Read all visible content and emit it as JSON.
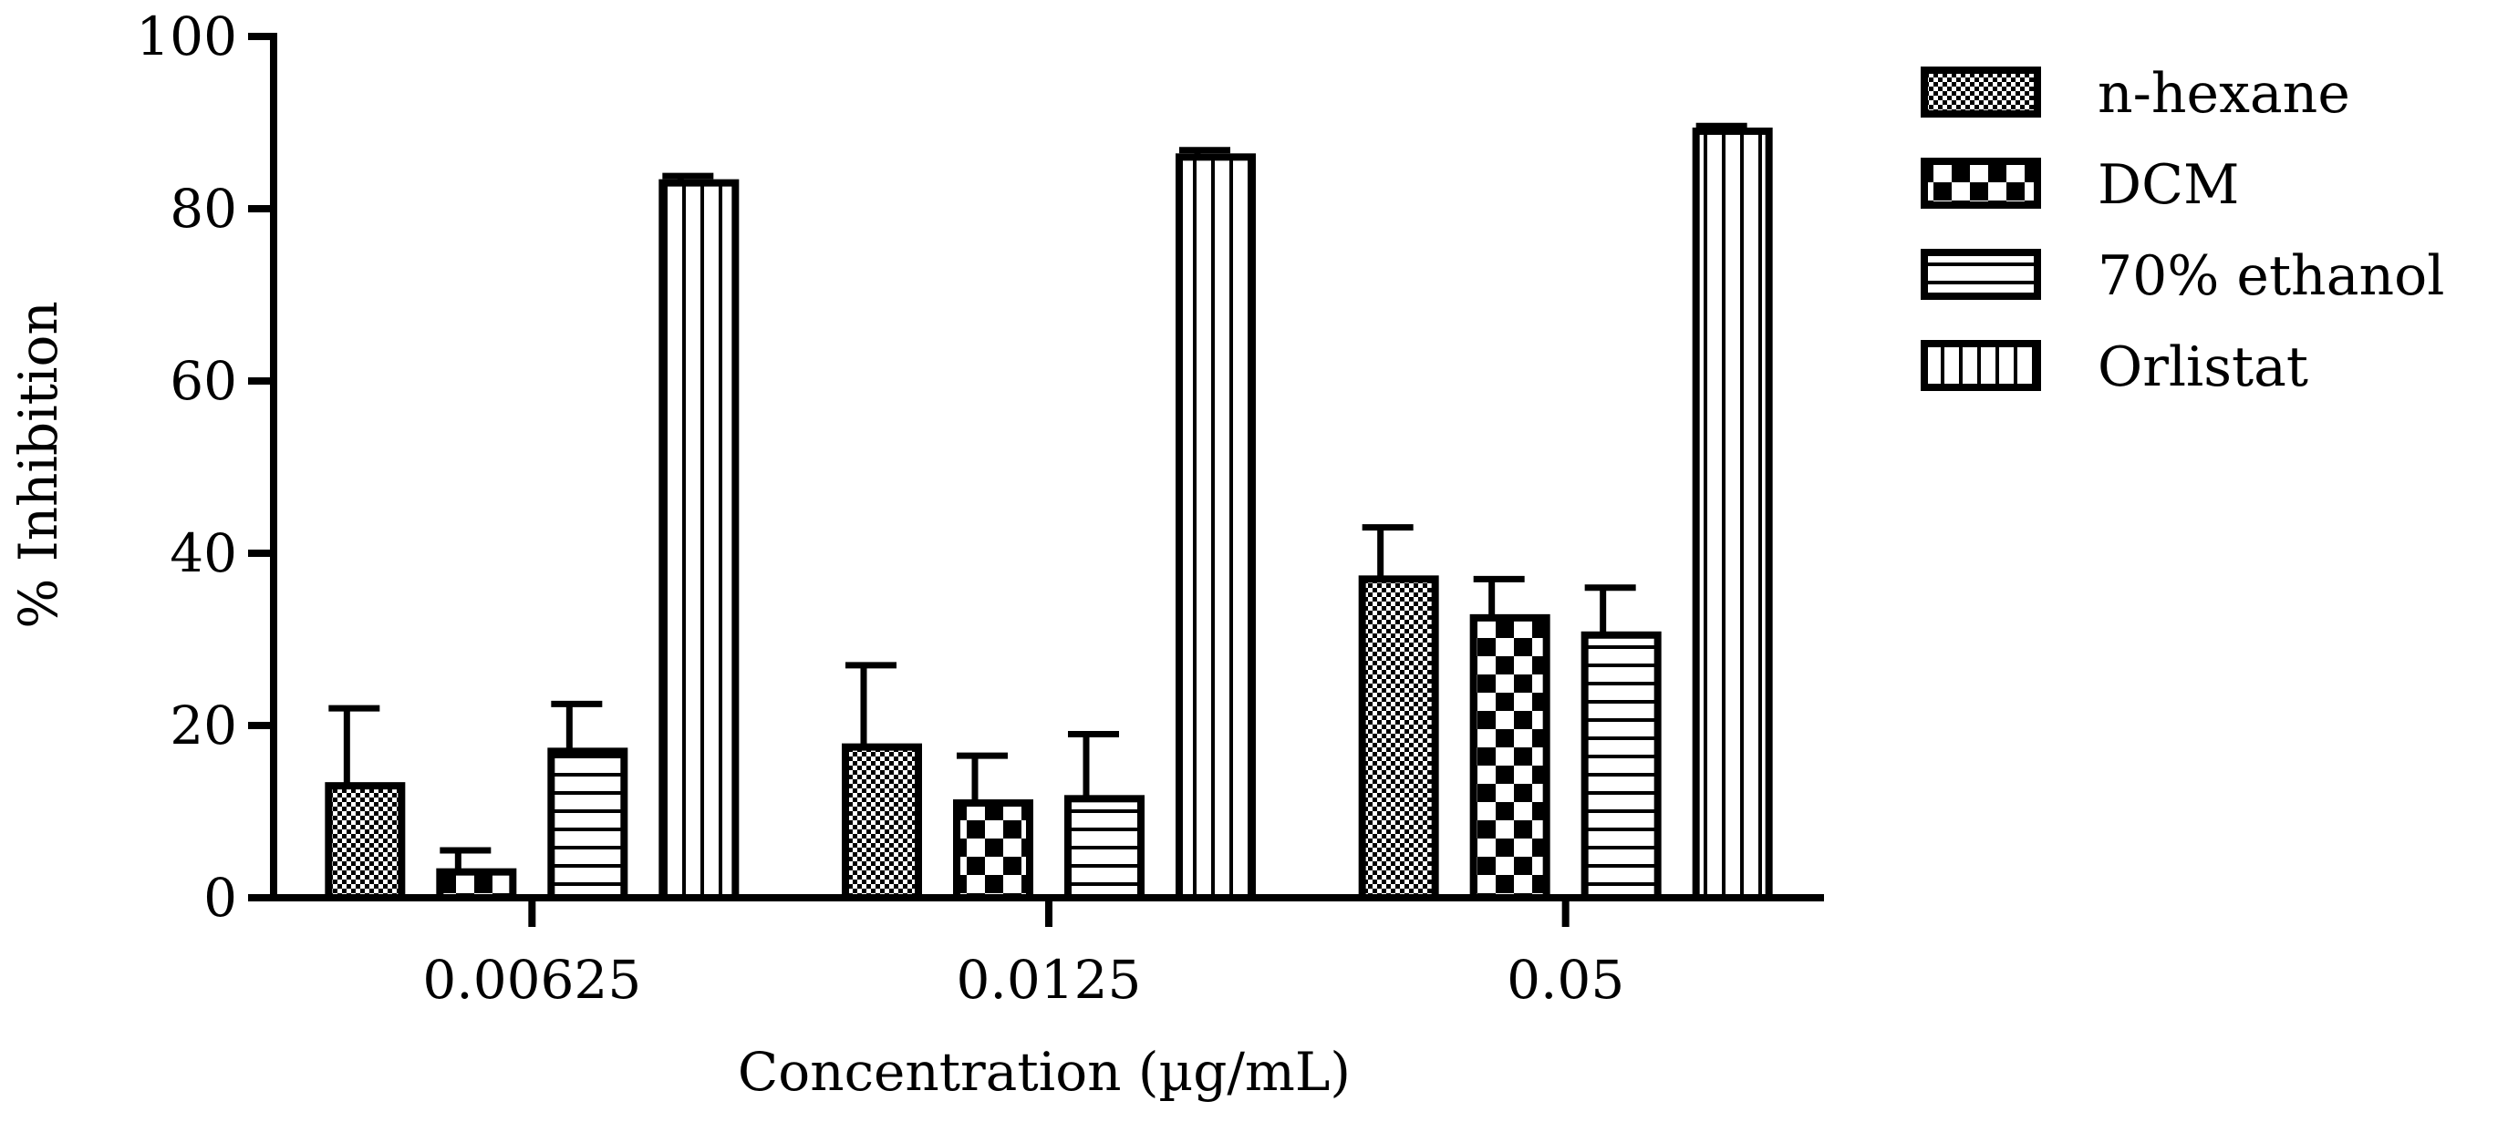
{
  "chart_data": {
    "type": "bar",
    "title": "",
    "xlabel": "Concentration (µg/mL)",
    "ylabel": "% Inhibition",
    "ylim": [
      0,
      100
    ],
    "yticks": [
      0,
      20,
      40,
      60,
      80,
      100
    ],
    "grid": false,
    "legend_position": "top-right",
    "categories": [
      "0.00625",
      "0.0125",
      "0.05"
    ],
    "series": [
      {
        "name": "n-hexane",
        "pattern": "fine-checker",
        "values": [
          13,
          17.5,
          37
        ],
        "errors": [
          9,
          9.5,
          6
        ]
      },
      {
        "name": "DCM",
        "pattern": "coarse-checker",
        "values": [
          3,
          11,
          32.5
        ],
        "errors": [
          2.5,
          5.5,
          4.5
        ]
      },
      {
        "name": "70% ethanol",
        "pattern": "horizontal-lines",
        "values": [
          17,
          11.5,
          30.5
        ],
        "errors": [
          5.5,
          7.5,
          5.5
        ]
      },
      {
        "name": "Orlistat",
        "pattern": "vertical-lines",
        "values": [
          83,
          86,
          89
        ],
        "errors": [
          0.8,
          0.8,
          0.6
        ]
      }
    ],
    "colors": {
      "ink": "#000000",
      "background": "#ffffff"
    }
  }
}
